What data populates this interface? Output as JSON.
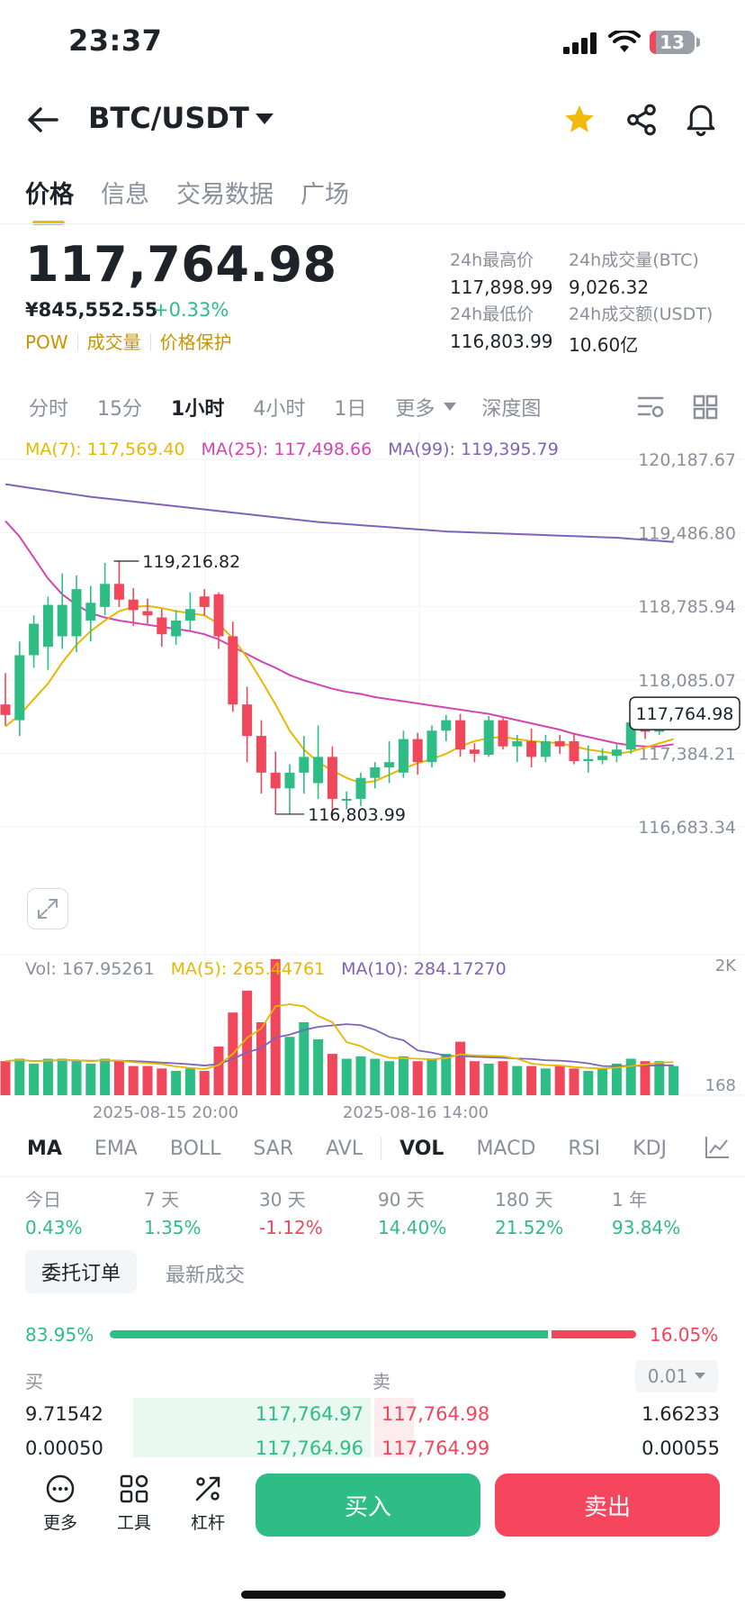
{
  "status_bar": {
    "time": "23:37",
    "battery": "13"
  },
  "header": {
    "pair": "BTC/USDT"
  },
  "tabs": [
    {
      "label": "价格",
      "active": true
    },
    {
      "label": "信息",
      "active": false
    },
    {
      "label": "交易数据",
      "active": false
    },
    {
      "label": "广场",
      "active": false
    }
  ],
  "price": {
    "last": "117,764.98",
    "cny": "¥845,552.55",
    "change": "+0.33%",
    "tags": [
      "POW",
      "成交量",
      "价格保护"
    ]
  },
  "stats": {
    "high_label": "24h最高价",
    "high": "117,898.99",
    "vol_btc_label": "24h成交量(BTC)",
    "vol_btc": "9,026.32",
    "low_label": "24h最低价",
    "low": "116,803.99",
    "vol_usdt_label": "24h成交额(USDT)",
    "vol_usdt": "10.60亿"
  },
  "timeframes": [
    {
      "label": "分时",
      "active": false
    },
    {
      "label": "15分",
      "active": false
    },
    {
      "label": "1小时",
      "active": true
    },
    {
      "label": "4小时",
      "active": false
    },
    {
      "label": "1日",
      "active": false
    },
    {
      "label": "更多",
      "active": false
    },
    {
      "label": "深度图",
      "active": false
    }
  ],
  "ma_legend": {
    "ma7": "MA(7): 117,569.40",
    "ma25": "MA(25): 117,498.66",
    "ma99": "MA(99): 119,395.79"
  },
  "colors": {
    "up": "#2ebd85",
    "down": "#f0475b",
    "ma7": "#e6b800",
    "ma25": "#d246b4",
    "ma99": "#7f63b8",
    "accent": "#f0b90b"
  },
  "chart_data": {
    "type": "candlestick",
    "price_axis": [
      "120,187.67",
      "119,486.80",
      "118,785.94",
      "118,085.07",
      "117,384.21",
      "116,683.34"
    ],
    "ylim": [
      116683.34,
      120187.67
    ],
    "last_price_tag": "117,764.98",
    "high_annotation": "119,216.82",
    "low_annotation": "116,803.99",
    "candles": [
      {
        "o": 117850,
        "h": 118150,
        "c": 117750,
        "l": 117650
      },
      {
        "o": 117700,
        "h": 118450,
        "c": 118320,
        "l": 117550
      },
      {
        "o": 118320,
        "h": 118700,
        "c": 118620,
        "l": 118200
      },
      {
        "o": 118400,
        "h": 118880,
        "c": 118800,
        "l": 118180
      },
      {
        "o": 118500,
        "h": 119100,
        "c": 118800,
        "l": 118380
      },
      {
        "o": 118500,
        "h": 119080,
        "c": 118950,
        "l": 118350
      },
      {
        "o": 118650,
        "h": 118980,
        "c": 118820,
        "l": 118450
      },
      {
        "o": 118780,
        "h": 119200,
        "c": 119000,
        "l": 118700
      },
      {
        "o": 119000,
        "h": 119216,
        "c": 118850,
        "l": 118780
      },
      {
        "o": 118850,
        "h": 118960,
        "c": 118750,
        "l": 118600
      },
      {
        "o": 118740,
        "h": 118860,
        "c": 118700,
        "l": 118620
      },
      {
        "o": 118680,
        "h": 118760,
        "c": 118520,
        "l": 118400
      },
      {
        "o": 118500,
        "h": 118750,
        "c": 118650,
        "l": 118420
      },
      {
        "o": 118650,
        "h": 118920,
        "c": 118760,
        "l": 118560
      },
      {
        "o": 118880,
        "h": 118950,
        "c": 118780,
        "l": 118700
      },
      {
        "o": 118900,
        "h": 118920,
        "c": 118500,
        "l": 118380
      },
      {
        "o": 118500,
        "h": 118640,
        "c": 117850,
        "l": 117780
      },
      {
        "o": 117850,
        "h": 118020,
        "c": 117550,
        "l": 117300
      },
      {
        "o": 117550,
        "h": 117700,
        "c": 117200,
        "l": 117000
      },
      {
        "o": 117200,
        "h": 117400,
        "c": 117050,
        "l": 116803
      },
      {
        "o": 117050,
        "h": 117280,
        "c": 117200,
        "l": 116803
      },
      {
        "o": 117200,
        "h": 117550,
        "c": 117350,
        "l": 117000
      },
      {
        "o": 117100,
        "h": 117650,
        "c": 117350,
        "l": 116950
      },
      {
        "o": 117350,
        "h": 117450,
        "c": 116950,
        "l": 116820
      },
      {
        "o": 116950,
        "h": 117020,
        "c": 116950,
        "l": 116850
      },
      {
        "o": 116950,
        "h": 117200,
        "c": 117150,
        "l": 116880
      },
      {
        "o": 117150,
        "h": 117300,
        "c": 117250,
        "l": 117050
      },
      {
        "o": 117250,
        "h": 117500,
        "c": 117300,
        "l": 117100
      },
      {
        "o": 117200,
        "h": 117600,
        "c": 117520,
        "l": 117150
      },
      {
        "o": 117520,
        "h": 117580,
        "c": 117300,
        "l": 117180
      },
      {
        "o": 117300,
        "h": 117650,
        "c": 117600,
        "l": 117250
      },
      {
        "o": 117600,
        "h": 117750,
        "c": 117700,
        "l": 117500
      },
      {
        "o": 117700,
        "h": 117760,
        "c": 117420,
        "l": 117350
      },
      {
        "o": 117420,
        "h": 117480,
        "c": 117380,
        "l": 117300
      },
      {
        "o": 117370,
        "h": 117740,
        "c": 117700,
        "l": 117350
      },
      {
        "o": 117700,
        "h": 117720,
        "c": 117450,
        "l": 117420
      },
      {
        "o": 117450,
        "h": 117560,
        "c": 117500,
        "l": 117300
      },
      {
        "o": 117500,
        "h": 117620,
        "c": 117350,
        "l": 117250
      },
      {
        "o": 117350,
        "h": 117560,
        "c": 117500,
        "l": 117300
      },
      {
        "o": 117500,
        "h": 117560,
        "c": 117450,
        "l": 117380
      },
      {
        "o": 117500,
        "h": 117580,
        "c": 117310,
        "l": 117280
      },
      {
        "o": 117310,
        "h": 117460,
        "c": 117330,
        "l": 117200
      },
      {
        "o": 117320,
        "h": 117430,
        "c": 117360,
        "l": 117280
      },
      {
        "o": 117360,
        "h": 117480,
        "c": 117420,
        "l": 117300
      },
      {
        "o": 117420,
        "h": 117700,
        "c": 117680,
        "l": 117380
      },
      {
        "o": 117680,
        "h": 117720,
        "c": 117590,
        "l": 117520
      },
      {
        "o": 117590,
        "h": 117760,
        "c": 117700,
        "l": 117560
      },
      {
        "o": 117700,
        "h": 117820,
        "c": 117764,
        "l": 117640
      }
    ],
    "ma7": [
      117640,
      117750,
      117900,
      118050,
      118250,
      118420,
      118550,
      118650,
      118740,
      118780,
      118790,
      118770,
      118740,
      118720,
      118700,
      118620,
      118480,
      118300,
      118080,
      117850,
      117600,
      117420,
      117300,
      117220,
      117150,
      117100,
      117120,
      117180,
      117240,
      117290,
      117330,
      117380,
      117450,
      117500,
      117530,
      117540,
      117520,
      117500,
      117490,
      117480,
      117450,
      117420,
      117400,
      117380,
      117400,
      117440,
      117480,
      117520
    ],
    "ma25": [
      119600,
      119450,
      119250,
      119050,
      118900,
      118800,
      118720,
      118680,
      118650,
      118630,
      118610,
      118590,
      118570,
      118550,
      118520,
      118470,
      118400,
      118330,
      118260,
      118200,
      118130,
      118080,
      118040,
      118000,
      117970,
      117950,
      117920,
      117900,
      117880,
      117860,
      117840,
      117820,
      117800,
      117780,
      117760,
      117730,
      117700,
      117670,
      117640,
      117610,
      117570,
      117540,
      117510,
      117480,
      117460,
      117450,
      117450,
      117470
    ],
    "ma99": [
      119950,
      119930,
      119910,
      119890,
      119870,
      119850,
      119830,
      119815,
      119800,
      119785,
      119770,
      119755,
      119740,
      119725,
      119710,
      119695,
      119680,
      119665,
      119650,
      119635,
      119620,
      119605,
      119590,
      119580,
      119570,
      119560,
      119550,
      119540,
      119530,
      119520,
      119510,
      119500,
      119495,
      119490,
      119485,
      119480,
      119475,
      119470,
      119465,
      119460,
      119455,
      119450,
      119445,
      119440,
      119430,
      119420,
      119410,
      119400
    ],
    "volume_axis": [
      "2K",
      "168"
    ],
    "volume": [
      140,
      150,
      130,
      150,
      150,
      140,
      130,
      150,
      140,
      120,
      120,
      110,
      100,
      110,
      100,
      200,
      340,
      430,
      300,
      560,
      240,
      300,
      230,
      170,
      150,
      160,
      150,
      140,
      160,
      140,
      150,
      170,
      220,
      140,
      130,
      140,
      120,
      120,
      110,
      120,
      110,
      100,
      110,
      130,
      150,
      140,
      140,
      120
    ],
    "x_labels": [
      "2025-08-15 20:00",
      "2025-08-16 14:00"
    ]
  },
  "volume_legend": {
    "vol": "Vol: 167.95261",
    "ma5": "MA(5): 265.44761",
    "ma10": "MA(10): 284.17270"
  },
  "indicators": [
    "MA",
    "EMA",
    "BOLL",
    "SAR",
    "AVL",
    "VOL",
    "MACD",
    "RSI",
    "KDJ"
  ],
  "performance": [
    {
      "label": "今日",
      "value": "0.43%",
      "dir": "up"
    },
    {
      "label": "7 天",
      "value": "1.35%",
      "dir": "up"
    },
    {
      "label": "30 天",
      "value": "-1.12%",
      "dir": "down"
    },
    {
      "label": "90 天",
      "value": "14.40%",
      "dir": "up"
    },
    {
      "label": "180 天",
      "value": "21.52%",
      "dir": "up"
    },
    {
      "label": "1 年",
      "value": "93.84%",
      "dir": "up"
    }
  ],
  "orderbook": {
    "tab_active": "委托订单",
    "tab_other": "最新成交",
    "buy_ratio": "83.95%",
    "sell_ratio": "16.05%",
    "buy_label": "买",
    "sell_label": "卖",
    "precision": "0.01",
    "rows": [
      {
        "bid_qty": "9.71542",
        "bid": "117,764.97",
        "ask": "117,764.98",
        "ask_qty": "1.66233"
      },
      {
        "bid_qty": "0.00050",
        "bid": "117,764.96",
        "ask": "117,764.99",
        "ask_qty": "0.00055"
      }
    ]
  },
  "bottom_bar": {
    "more": "更多",
    "tools": "工具",
    "leverage": "杠杆",
    "buy": "买入",
    "sell": "卖出"
  }
}
